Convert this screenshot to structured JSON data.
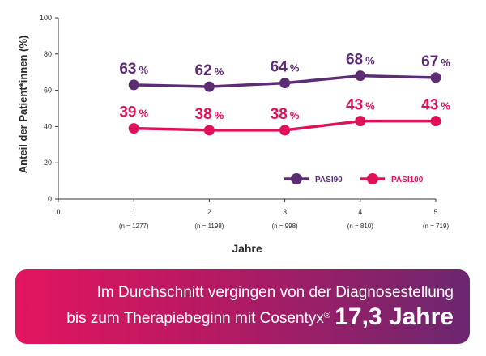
{
  "chart_data": {
    "type": "line",
    "ylabel": "Anteil der Patient*innen (%)",
    "xlabel": "Jahre",
    "ylim": [
      0,
      100
    ],
    "yticks": [
      "0",
      "20",
      "40",
      "60",
      "80",
      "100"
    ],
    "xlim": [
      0,
      5
    ],
    "x": [
      1,
      2,
      3,
      4,
      5
    ],
    "xticks": [
      "0",
      "1",
      "2",
      "3",
      "4",
      "5"
    ],
    "n_labels": [
      "(n = 1277)",
      "(n = 1198)",
      "(n = 998)",
      "(n = 810)",
      "(n = 719)"
    ],
    "pct_symbol": "%",
    "grid": false,
    "legend_position": "bottom-right",
    "series": [
      {
        "name": "PASI90",
        "values": [
          63,
          62,
          64,
          68,
          67
        ],
        "color": "#5c2d73"
      },
      {
        "name": "PASI100",
        "values": [
          39,
          38,
          38,
          43,
          43
        ],
        "color": "#e0105a"
      }
    ]
  },
  "banner": {
    "line1": "Im Durchschnitt vergingen von der Diagnosestellung",
    "line2_prefix": "bis zum Therapiebeginn mit Cosentyx",
    "registered": "®",
    "highlight": "17,3 Jahre"
  }
}
